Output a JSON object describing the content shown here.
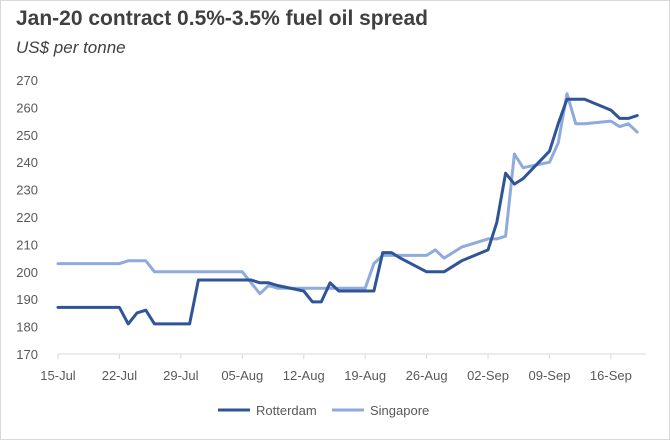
{
  "colors": {
    "rotterdam": "#2F5597",
    "singapore": "#8FAADC",
    "axis": "#d9d9d9",
    "text": "#595959",
    "title": "#404040"
  },
  "chart_data": {
    "type": "line",
    "title": "Jan-20 contract 0.5%-3.5% fuel oil spread",
    "subtitle": "US$ per tonne",
    "xlabel": "",
    "ylabel": "",
    "ylim": [
      170,
      270
    ],
    "yticks": [
      170,
      180,
      190,
      200,
      210,
      220,
      230,
      240,
      250,
      260,
      270
    ],
    "xlim": [
      "2019-07-15",
      "2019-09-20"
    ],
    "xticks": [
      {
        "date": "2019-07-15",
        "label": "15-Jul"
      },
      {
        "date": "2019-07-22",
        "label": "22-Jul"
      },
      {
        "date": "2019-07-29",
        "label": "29-Jul"
      },
      {
        "date": "2019-08-05",
        "label": "05-Aug"
      },
      {
        "date": "2019-08-12",
        "label": "12-Aug"
      },
      {
        "date": "2019-08-19",
        "label": "19-Aug"
      },
      {
        "date": "2019-08-26",
        "label": "26-Aug"
      },
      {
        "date": "2019-09-02",
        "label": "02-Sep"
      },
      {
        "date": "2019-09-09",
        "label": "09-Sep"
      },
      {
        "date": "2019-09-16",
        "label": "16-Sep"
      }
    ],
    "grid": false,
    "legend": "bottom",
    "series": [
      {
        "name": "Rotterdam",
        "color": "#2F5597",
        "points": [
          [
            "2019-07-15",
            187
          ],
          [
            "2019-07-16",
            187
          ],
          [
            "2019-07-17",
            187
          ],
          [
            "2019-07-18",
            187
          ],
          [
            "2019-07-19",
            187
          ],
          [
            "2019-07-22",
            187
          ],
          [
            "2019-07-23",
            181
          ],
          [
            "2019-07-24",
            185
          ],
          [
            "2019-07-25",
            186
          ],
          [
            "2019-07-26",
            181
          ],
          [
            "2019-07-29",
            181
          ],
          [
            "2019-07-30",
            181
          ],
          [
            "2019-07-31",
            197
          ],
          [
            "2019-08-01",
            197
          ],
          [
            "2019-08-02",
            197
          ],
          [
            "2019-08-05",
            197
          ],
          [
            "2019-08-06",
            197
          ],
          [
            "2019-08-07",
            196
          ],
          [
            "2019-08-08",
            196
          ],
          [
            "2019-08-09",
            195
          ],
          [
            "2019-08-12",
            193
          ],
          [
            "2019-08-13",
            189
          ],
          [
            "2019-08-14",
            189
          ],
          [
            "2019-08-15",
            196
          ],
          [
            "2019-08-16",
            193
          ],
          [
            "2019-08-19",
            193
          ],
          [
            "2019-08-20",
            193
          ],
          [
            "2019-08-21",
            207
          ],
          [
            "2019-08-22",
            207
          ],
          [
            "2019-08-23",
            205
          ],
          [
            "2019-08-26",
            200
          ],
          [
            "2019-08-27",
            200
          ],
          [
            "2019-08-28",
            200
          ],
          [
            "2019-08-29",
            202
          ],
          [
            "2019-08-30",
            204
          ],
          [
            "2019-09-02",
            208
          ],
          [
            "2019-09-03",
            218
          ],
          [
            "2019-09-04",
            236
          ],
          [
            "2019-09-05",
            232
          ],
          [
            "2019-09-06",
            234
          ],
          [
            "2019-09-09",
            244
          ],
          [
            "2019-09-10",
            254
          ],
          [
            "2019-09-11",
            263
          ],
          [
            "2019-09-12",
            263
          ],
          [
            "2019-09-13",
            263
          ],
          [
            "2019-09-16",
            259
          ],
          [
            "2019-09-17",
            256
          ],
          [
            "2019-09-18",
            256
          ],
          [
            "2019-09-19",
            257
          ]
        ]
      },
      {
        "name": "Singapore",
        "color": "#8FAADC",
        "points": [
          [
            "2019-07-15",
            203
          ],
          [
            "2019-07-16",
            203
          ],
          [
            "2019-07-17",
            203
          ],
          [
            "2019-07-18",
            203
          ],
          [
            "2019-07-19",
            203
          ],
          [
            "2019-07-22",
            203
          ],
          [
            "2019-07-23",
            204
          ],
          [
            "2019-07-24",
            204
          ],
          [
            "2019-07-25",
            204
          ],
          [
            "2019-07-26",
            200
          ],
          [
            "2019-07-29",
            200
          ],
          [
            "2019-07-30",
            200
          ],
          [
            "2019-07-31",
            200
          ],
          [
            "2019-08-01",
            200
          ],
          [
            "2019-08-02",
            200
          ],
          [
            "2019-08-05",
            200
          ],
          [
            "2019-08-06",
            196
          ],
          [
            "2019-08-07",
            192
          ],
          [
            "2019-08-08",
            195
          ],
          [
            "2019-08-09",
            194
          ],
          [
            "2019-08-12",
            194
          ],
          [
            "2019-08-13",
            194
          ],
          [
            "2019-08-14",
            194
          ],
          [
            "2019-08-15",
            194
          ],
          [
            "2019-08-16",
            194
          ],
          [
            "2019-08-19",
            194
          ],
          [
            "2019-08-20",
            203
          ],
          [
            "2019-08-21",
            206
          ],
          [
            "2019-08-22",
            206
          ],
          [
            "2019-08-23",
            206
          ],
          [
            "2019-08-26",
            206
          ],
          [
            "2019-08-27",
            208
          ],
          [
            "2019-08-28",
            205
          ],
          [
            "2019-08-29",
            207
          ],
          [
            "2019-08-30",
            209
          ],
          [
            "2019-09-02",
            212
          ],
          [
            "2019-09-03",
            212
          ],
          [
            "2019-09-04",
            213
          ],
          [
            "2019-09-05",
            243
          ],
          [
            "2019-09-06",
            238
          ],
          [
            "2019-09-09",
            240
          ],
          [
            "2019-09-10",
            247
          ],
          [
            "2019-09-11",
            265
          ],
          [
            "2019-09-12",
            254
          ],
          [
            "2019-09-13",
            254
          ],
          [
            "2019-09-16",
            255
          ],
          [
            "2019-09-17",
            253
          ],
          [
            "2019-09-18",
            254
          ],
          [
            "2019-09-19",
            251
          ]
        ]
      }
    ]
  }
}
